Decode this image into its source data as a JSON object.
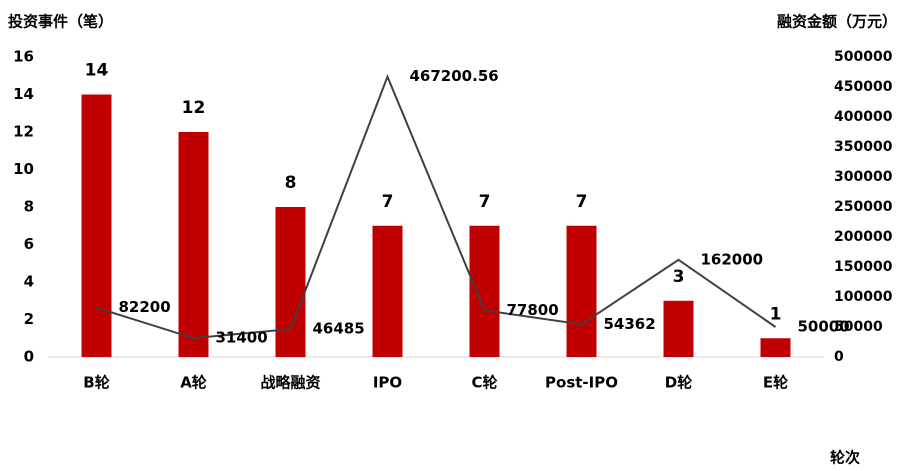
{
  "chart_data": {
    "type": "bar_line",
    "y_label": "投资事件（笔）",
    "y2_label": "融资金额（万元）",
    "x_label": "轮次",
    "categories": [
      "B轮",
      "A轮",
      "战略融资",
      "IPO",
      "C轮",
      "Post-IPO",
      "D轮",
      "E轮"
    ],
    "series": [
      {
        "type": "bar",
        "color": "#c00000",
        "values": [
          14,
          12,
          8,
          7,
          7,
          7,
          3,
          1
        ]
      },
      {
        "type": "line",
        "axis": "y2",
        "color": "#404040",
        "values": [
          82200,
          31400,
          46485,
          467200.56,
          77800,
          54362,
          162000,
          50000
        ]
      }
    ],
    "ylim": [
      0,
      16
    ],
    "yticks": [
      0,
      2,
      4,
      6,
      8,
      10,
      12,
      14,
      16
    ],
    "y2lim": [
      0,
      500000
    ],
    "y2ticks": [
      0,
      50000,
      100000,
      150000,
      200000,
      250000,
      300000,
      350000,
      400000,
      450000,
      500000
    ],
    "grid": false
  }
}
